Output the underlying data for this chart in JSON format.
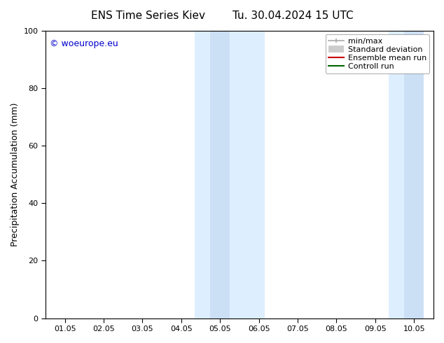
{
  "title_left": "ENS Time Series Kiev",
  "title_right": "Tu. 30.04.2024 15 UTC",
  "ylabel": "Precipitation Accumulation (mm)",
  "ylim": [
    0,
    100
  ],
  "yticks": [
    0,
    20,
    40,
    60,
    80,
    100
  ],
  "xtick_labels": [
    "01.05",
    "02.05",
    "03.05",
    "04.05",
    "05.05",
    "06.05",
    "07.05",
    "08.05",
    "09.05",
    "10.05"
  ],
  "xtick_positions": [
    0,
    1,
    2,
    3,
    4,
    5,
    6,
    7,
    8,
    9
  ],
  "xlim": [
    -0.5,
    9.5
  ],
  "shade_regions": [
    {
      "x_start": 3.35,
      "x_end": 3.75,
      "color": "#ddeeff"
    },
    {
      "x_start": 3.75,
      "x_end": 4.25,
      "color": "#cce0f5"
    },
    {
      "x_start": 4.25,
      "x_end": 5.15,
      "color": "#ddeeff"
    },
    {
      "x_start": 8.35,
      "x_end": 8.75,
      "color": "#ddeeff"
    },
    {
      "x_start": 8.75,
      "x_end": 9.25,
      "color": "#cce0f5"
    }
  ],
  "watermark_text": "© woeurope.eu",
  "watermark_color": "#0000cc",
  "legend_items": [
    {
      "label": "min/max",
      "color": "#aaaaaa",
      "lw": 1.2,
      "type": "line_with_caps"
    },
    {
      "label": "Standard deviation",
      "color": "#cccccc",
      "lw": 7,
      "type": "thick_line"
    },
    {
      "label": "Ensemble mean run",
      "color": "#cc0000",
      "lw": 1.5,
      "type": "line"
    },
    {
      "label": "Controll run",
      "color": "#006600",
      "lw": 1.5,
      "type": "line"
    }
  ],
  "background_color": "#ffffff",
  "title_fontsize": 11,
  "tick_fontsize": 8,
  "ylabel_fontsize": 9,
  "watermark_fontsize": 9,
  "legend_fontsize": 8
}
